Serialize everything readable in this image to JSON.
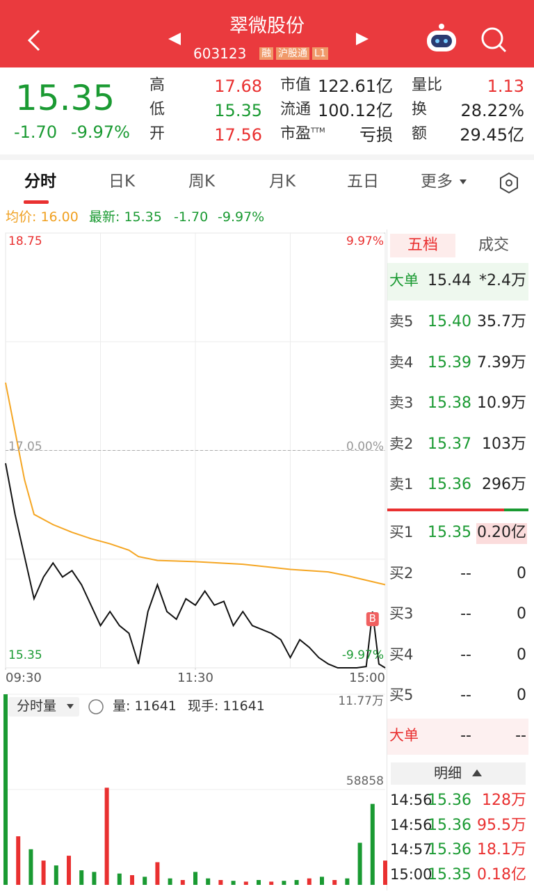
{
  "header": {
    "title": "翠微股份",
    "code": "603123",
    "tags": [
      "融",
      "沪股通",
      "L1"
    ]
  },
  "quote": {
    "price": "15.35",
    "change": "-1.70",
    "change_pct": "-9.97%",
    "stats": [
      [
        {
          "label": "高",
          "value": "17.68"
        },
        {
          "label": "市值",
          "value": "122.61亿"
        },
        {
          "label": "量比",
          "value": "1.13"
        }
      ],
      [
        {
          "label": "低",
          "value": "15.35"
        },
        {
          "label": "流通",
          "value": "100.12亿"
        },
        {
          "label": "换",
          "value": "28.22%"
        }
      ],
      [
        {
          "label": "开",
          "value": "17.56"
        },
        {
          "label": "市盈TTM",
          "value": "亏损"
        },
        {
          "label": "额",
          "value": "29.45亿"
        }
      ]
    ]
  },
  "tabs": [
    "分时",
    "日K",
    "周K",
    "月K",
    "五日",
    "更多"
  ],
  "info": {
    "avg": "均价: 16.00",
    "latest": "最新: 15.35",
    "change": "-1.70",
    "change_pct": "-9.97%"
  },
  "chart_data": [
    {
      "type": "line",
      "series": [
        {
          "color": "#111111",
          "x": [
            0,
            6,
            12,
            18,
            24,
            30,
            36,
            42,
            48,
            54,
            60,
            66,
            72,
            78,
            84,
            90,
            96,
            102,
            108,
            114,
            120,
            126,
            132,
            138,
            144,
            150,
            156,
            162,
            168,
            174,
            180,
            186,
            192,
            198,
            204,
            210,
            216,
            222,
            228,
            232,
            236,
            240
          ],
          "values": [
            16.95,
            16.55,
            16.22,
            15.89,
            16.06,
            16.17,
            16.06,
            16.11,
            16.0,
            15.84,
            15.68,
            15.79,
            15.68,
            15.62,
            15.38,
            15.79,
            16.0,
            15.79,
            15.73,
            15.89,
            15.84,
            15.95,
            15.84,
            15.87,
            15.68,
            15.79,
            15.68,
            15.65,
            15.62,
            15.57,
            15.43,
            15.57,
            15.51,
            15.43,
            15.38,
            15.35,
            15.35,
            15.35,
            15.36,
            15.79,
            15.38,
            15.35
          ]
        },
        {
          "color": "#f5a623",
          "x": [
            0,
            6,
            12,
            18,
            30,
            42,
            54,
            66,
            78,
            84,
            96,
            120,
            150,
            180,
            204,
            216,
            240
          ],
          "values": [
            17.58,
            17.2,
            16.82,
            16.55,
            16.47,
            16.41,
            16.36,
            16.32,
            16.27,
            16.22,
            16.19,
            16.18,
            16.16,
            16.12,
            16.1,
            16.07,
            16.0
          ]
        }
      ],
      "xlim": [
        0,
        240
      ],
      "xticks": [
        {
          "value": 0,
          "label": "09:30"
        },
        {
          "value": 120,
          "label": "11:30"
        },
        {
          "value": 240,
          "label": "15:00"
        }
      ],
      "ylim": [
        15.35,
        18.75
      ],
      "yticks": [
        18.75,
        17.05,
        15.35
      ],
      "y2lim": [
        -9.97,
        9.97
      ],
      "y2ticks": [
        {
          "value": 9.97,
          "label": "9.97%"
        },
        {
          "value": 0,
          "label": "0.00%"
        },
        {
          "value": -9.97,
          "label": "-9.97%"
        }
      ],
      "marker": "B"
    },
    {
      "type": "bar",
      "title": "分时量",
      "stats": [
        "量: 11641",
        "现手: 11641"
      ],
      "x": [
        0,
        8,
        16,
        24,
        32,
        40,
        48,
        56,
        64,
        72,
        80,
        88,
        96,
        104,
        112,
        120,
        128,
        136,
        144,
        152,
        160,
        168,
        176,
        184,
        192,
        200,
        208,
        216,
        224,
        232,
        240
      ],
      "values": [
        117700,
        30000,
        22000,
        15000,
        12000,
        18000,
        9000,
        8000,
        60000,
        7000,
        6000,
        5000,
        14000,
        4000,
        3000,
        8000,
        4000,
        3000,
        2500,
        2000,
        3000,
        2000,
        2500,
        3000,
        4000,
        5000,
        3000,
        4000,
        26000,
        50000,
        15000
      ],
      "colors": [
        "#1a9a32",
        "#e93030",
        "#1a9a32",
        "#e93030",
        "#1a9a32",
        "#e93030",
        "#1a9a32",
        "#1a9a32",
        "#e93030",
        "#1a9a32",
        "#e93030",
        "#1a9a32",
        "#e93030",
        "#1a9a32",
        "#e93030",
        "#1a9a32",
        "#1a9a32",
        "#e93030",
        "#1a9a32",
        "#e93030",
        "#1a9a32",
        "#e93030",
        "#1a9a32",
        "#1a9a32",
        "#e93030",
        "#1a9a32",
        "#e93030",
        "#1a9a32",
        "#1a9a32",
        "#1a9a32",
        "#e93030"
      ],
      "xlim": [
        0,
        240
      ],
      "ylim": [
        0,
        117700
      ],
      "yticks": [
        {
          "value": 117700,
          "label": "11.77万"
        },
        58858
      ]
    }
  ],
  "order_book": {
    "tabs": [
      "五档",
      "成交"
    ],
    "big_order": {
      "label": "大单",
      "price": "15.44",
      "volume": "*2.4万"
    },
    "asks": [
      {
        "label": "卖5",
        "price": "15.40",
        "volume": "35.7万"
      },
      {
        "label": "卖4",
        "price": "15.39",
        "volume": "7.39万"
      },
      {
        "label": "卖3",
        "price": "15.38",
        "volume": "10.9万"
      },
      {
        "label": "卖2",
        "price": "15.37",
        "volume": "103万"
      },
      {
        "label": "卖1",
        "price": "15.36",
        "volume": "296万"
      }
    ],
    "bids": [
      {
        "label": "买1",
        "price": "15.35",
        "volume": "0.20亿"
      },
      {
        "label": "买2",
        "price": "--",
        "volume": "0"
      },
      {
        "label": "买3",
        "price": "--",
        "volume": "0"
      },
      {
        "label": "买4",
        "price": "--",
        "volume": "0"
      },
      {
        "label": "买5",
        "price": "--",
        "volume": "0"
      }
    ],
    "big_order2": {
      "label": "大单",
      "price": "--",
      "volume": "--"
    },
    "detail_title": "明细",
    "trades": [
      {
        "time": "14:56",
        "price": "15.36",
        "volume": "128万"
      },
      {
        "time": "14:56",
        "price": "15.36",
        "volume": "95.5万"
      },
      {
        "time": "14:57",
        "price": "15.36",
        "volume": "18.1万"
      },
      {
        "time": "15:00",
        "price": "15.35",
        "volume": "0.18亿"
      }
    ]
  }
}
